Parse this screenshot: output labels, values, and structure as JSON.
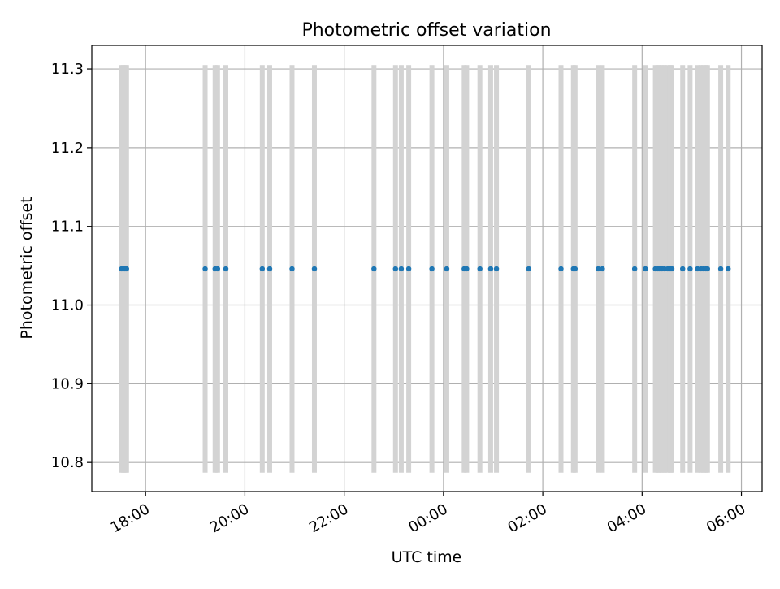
{
  "chart_data": {
    "type": "scatter",
    "title": "Photometric offset variation",
    "xlabel": "UTC time",
    "ylabel": "Photometric offset",
    "x_type": "time",
    "xlim": [
      "2000-01-01 16:55",
      "2000-01-02 06:25"
    ],
    "ylim": [
      10.763,
      11.33
    ],
    "x_ticks": [
      {
        "t": "2000-01-01 18:00",
        "label": "18:00"
      },
      {
        "t": "2000-01-01 20:00",
        "label": "20:00"
      },
      {
        "t": "2000-01-01 22:00",
        "label": "22:00"
      },
      {
        "t": "2000-01-02 00:00",
        "label": "00:00"
      },
      {
        "t": "2000-01-02 02:00",
        "label": "02:00"
      },
      {
        "t": "2000-01-02 04:00",
        "label": "04:00"
      },
      {
        "t": "2000-01-02 06:00",
        "label": "06:00"
      }
    ],
    "y_ticks": [
      {
        "v": 10.8,
        "label": "10.8"
      },
      {
        "v": 10.9,
        "label": "10.9"
      },
      {
        "v": 11.0,
        "label": "11.0"
      },
      {
        "v": 11.1,
        "label": "11.1"
      },
      {
        "v": 11.2,
        "label": "11.2"
      },
      {
        "v": 11.3,
        "label": "11.3"
      }
    ],
    "grid": true,
    "band_range": [
      10.787,
      11.305
    ],
    "band_color": "#d3d3d3",
    "point_color": "#1f77b4",
    "series": [
      {
        "values": [
          [
            "2000-01-01 17:31",
            11.046
          ],
          [
            "2000-01-01 17:33",
            11.046
          ],
          [
            "2000-01-01 17:35",
            11.046
          ],
          [
            "2000-01-01 17:37",
            11.046
          ],
          [
            "2000-01-01 19:12",
            11.046
          ],
          [
            "2000-01-01 19:24",
            11.046
          ],
          [
            "2000-01-01 19:27",
            11.046
          ],
          [
            "2000-01-01 19:37",
            11.046
          ],
          [
            "2000-01-01 20:21",
            11.046
          ],
          [
            "2000-01-01 20:30",
            11.046
          ],
          [
            "2000-01-01 20:57",
            11.046
          ],
          [
            "2000-01-01 21:24",
            11.046
          ],
          [
            "2000-01-01 22:36",
            11.046
          ],
          [
            "2000-01-01 23:02",
            11.046
          ],
          [
            "2000-01-01 23:09",
            11.046
          ],
          [
            "2000-01-01 23:18",
            11.046
          ],
          [
            "2000-01-01 23:46",
            11.046
          ],
          [
            "2000-01-02 00:04",
            11.046
          ],
          [
            "2000-01-02 00:25",
            11.046
          ],
          [
            "2000-01-02 00:28",
            11.046
          ],
          [
            "2000-01-02 00:44",
            11.046
          ],
          [
            "2000-01-02 00:57",
            11.046
          ],
          [
            "2000-01-02 01:04",
            11.046
          ],
          [
            "2000-01-02 01:43",
            11.046
          ],
          [
            "2000-01-02 02:22",
            11.046
          ],
          [
            "2000-01-02 02:37",
            11.046
          ],
          [
            "2000-01-02 02:39",
            11.046
          ],
          [
            "2000-01-02 03:07",
            11.046
          ],
          [
            "2000-01-02 03:12",
            11.046
          ],
          [
            "2000-01-02 03:51",
            11.046
          ],
          [
            "2000-01-02 04:04",
            11.046
          ],
          [
            "2000-01-02 04:16",
            11.046
          ],
          [
            "2000-01-02 04:19",
            11.046
          ],
          [
            "2000-01-02 04:21",
            11.046
          ],
          [
            "2000-01-02 04:24",
            11.046
          ],
          [
            "2000-01-02 04:27",
            11.046
          ],
          [
            "2000-01-02 04:31",
            11.046
          ],
          [
            "2000-01-02 04:34",
            11.046
          ],
          [
            "2000-01-02 04:36",
            11.046
          ],
          [
            "2000-01-02 04:49",
            11.046
          ],
          [
            "2000-01-02 04:58",
            11.046
          ],
          [
            "2000-01-02 05:07",
            11.046
          ],
          [
            "2000-01-02 05:11",
            11.046
          ],
          [
            "2000-01-02 05:14",
            11.046
          ],
          [
            "2000-01-02 05:17",
            11.046
          ],
          [
            "2000-01-02 05:19",
            11.046
          ],
          [
            "2000-01-02 05:35",
            11.046
          ],
          [
            "2000-01-02 05:44",
            11.046
          ]
        ]
      }
    ]
  }
}
